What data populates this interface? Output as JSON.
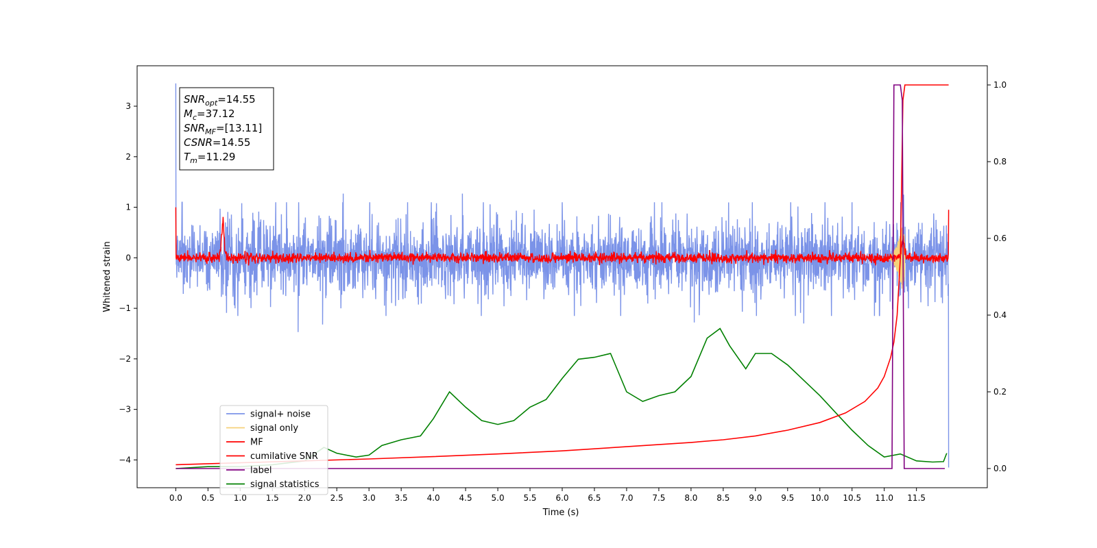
{
  "chart_data": {
    "type": "line",
    "title": "",
    "xlabel": "Time (s)",
    "ylabel": "Whitened strain",
    "xlim": [
      -0.6,
      12.6
    ],
    "ylim": [
      -4.55,
      3.8
    ],
    "y2lim": [
      -0.05,
      1.05
    ],
    "xticks": [
      "0.0",
      "0.5",
      "1.0",
      "1.5",
      "2.0",
      "2.5",
      "3.0",
      "3.5",
      "4.0",
      "4.5",
      "5.0",
      "5.5",
      "6.0",
      "6.5",
      "7.0",
      "7.5",
      "8.0",
      "8.5",
      "9.0",
      "9.5",
      "10.0",
      "10.5",
      "11.0",
      "11.5"
    ],
    "yticks": [
      "3",
      "2",
      "1",
      "0",
      "−1",
      "−2",
      "−3",
      "−4"
    ],
    "y2ticks": [
      "1.0",
      "0.8",
      "0.6",
      "0.4",
      "0.2",
      "0.0"
    ],
    "grid": false,
    "legend_position": "lower-left",
    "annotation": {
      "lines": [
        {
          "sym": "SNR",
          "sub": "opt",
          "text": "=14.55"
        },
        {
          "sym": "M",
          "sub": "c",
          "text": "=37.12"
        },
        {
          "sym": "SNR",
          "sub": "MF",
          "text": "=[13.11]"
        },
        {
          "sym": "CSNR",
          "sub": "",
          "text": "=14.55"
        },
        {
          "sym": "T",
          "sub": "m",
          "text": "=11.29"
        }
      ]
    },
    "series": [
      {
        "name": "signal+ noise",
        "axis": "left",
        "color": "#7b93e8",
        "kind": "noise",
        "x_range": [
          0.0,
          12.0
        ],
        "amplitude_typical": 0.75,
        "start_spike": 3.45,
        "end_value": -4.15,
        "extremes": [
          [
            0.92,
            -1.0
          ],
          [
            1.9,
            -1.47
          ],
          [
            2.28,
            -1.32
          ],
          [
            4.45,
            1.27
          ],
          [
            2.6,
            1.27
          ],
          [
            8.05,
            -1.28
          ],
          [
            9.75,
            -1.3
          ],
          [
            11.3,
            1.25
          ]
        ]
      },
      {
        "name": "signal only",
        "axis": "left",
        "color": "#f6d17a",
        "kind": "chirp",
        "x_range": [
          11.0,
          11.32
        ],
        "peak_amplitude": 0.9
      },
      {
        "name": "MF",
        "axis": "left",
        "color": "#ff0000",
        "kind": "noise",
        "x_range": [
          0.0,
          12.0
        ],
        "amplitude_typical": 0.09,
        "start_value": 1.0,
        "end_value": 0.95,
        "peaks": [
          [
            0.73,
            0.67
          ],
          [
            11.29,
            0.35
          ]
        ]
      },
      {
        "name": "cumilative SNR",
        "axis": "right",
        "color": "#ff0000",
        "x": [
          0.0,
          1.0,
          2.0,
          3.0,
          4.0,
          5.0,
          6.0,
          7.0,
          8.0,
          8.5,
          9.0,
          9.5,
          10.0,
          10.4,
          10.7,
          10.9,
          11.0,
          11.1,
          11.15,
          11.2,
          11.25,
          11.27,
          11.29,
          11.32,
          11.35,
          11.5,
          12.0
        ],
        "values": [
          0.01,
          0.015,
          0.02,
          0.025,
          0.031,
          0.038,
          0.046,
          0.057,
          0.068,
          0.075,
          0.085,
          0.1,
          0.12,
          0.145,
          0.175,
          0.21,
          0.24,
          0.29,
          0.33,
          0.4,
          0.55,
          0.75,
          0.96,
          1.0,
          1.0,
          1.0,
          1.0
        ]
      },
      {
        "name": "label",
        "axis": "right",
        "color": "#800080",
        "x": [
          0.0,
          11.12,
          11.15,
          11.25,
          11.28,
          11.31,
          11.94
        ],
        "values": [
          0.0,
          0.0,
          1.0,
          1.0,
          0.96,
          0.0,
          0.0
        ]
      },
      {
        "name": "signal statistics",
        "axis": "right",
        "color": "#008000",
        "x": [
          0.0,
          0.5,
          1.0,
          1.5,
          2.0,
          2.3,
          2.5,
          2.8,
          3.0,
          3.2,
          3.5,
          3.8,
          4.0,
          4.25,
          4.5,
          4.75,
          5.0,
          5.25,
          5.5,
          5.75,
          6.0,
          6.25,
          6.5,
          6.75,
          7.0,
          7.25,
          7.5,
          7.75,
          8.0,
          8.25,
          8.45,
          8.6,
          8.85,
          9.0,
          9.25,
          9.5,
          9.75,
          10.0,
          10.25,
          10.5,
          10.75,
          11.0,
          11.25,
          11.5,
          11.75,
          11.92,
          11.97
        ],
        "values": [
          0.0,
          0.005,
          0.005,
          0.01,
          0.02,
          0.055,
          0.04,
          0.03,
          0.035,
          0.06,
          0.075,
          0.085,
          0.13,
          0.2,
          0.16,
          0.125,
          0.115,
          0.125,
          0.16,
          0.18,
          0.235,
          0.285,
          0.29,
          0.3,
          0.2,
          0.175,
          0.19,
          0.2,
          0.24,
          0.34,
          0.365,
          0.32,
          0.26,
          0.3,
          0.3,
          0.27,
          0.23,
          0.19,
          0.145,
          0.1,
          0.06,
          0.03,
          0.038,
          0.02,
          0.017,
          0.018,
          0.04
        ]
      }
    ]
  }
}
